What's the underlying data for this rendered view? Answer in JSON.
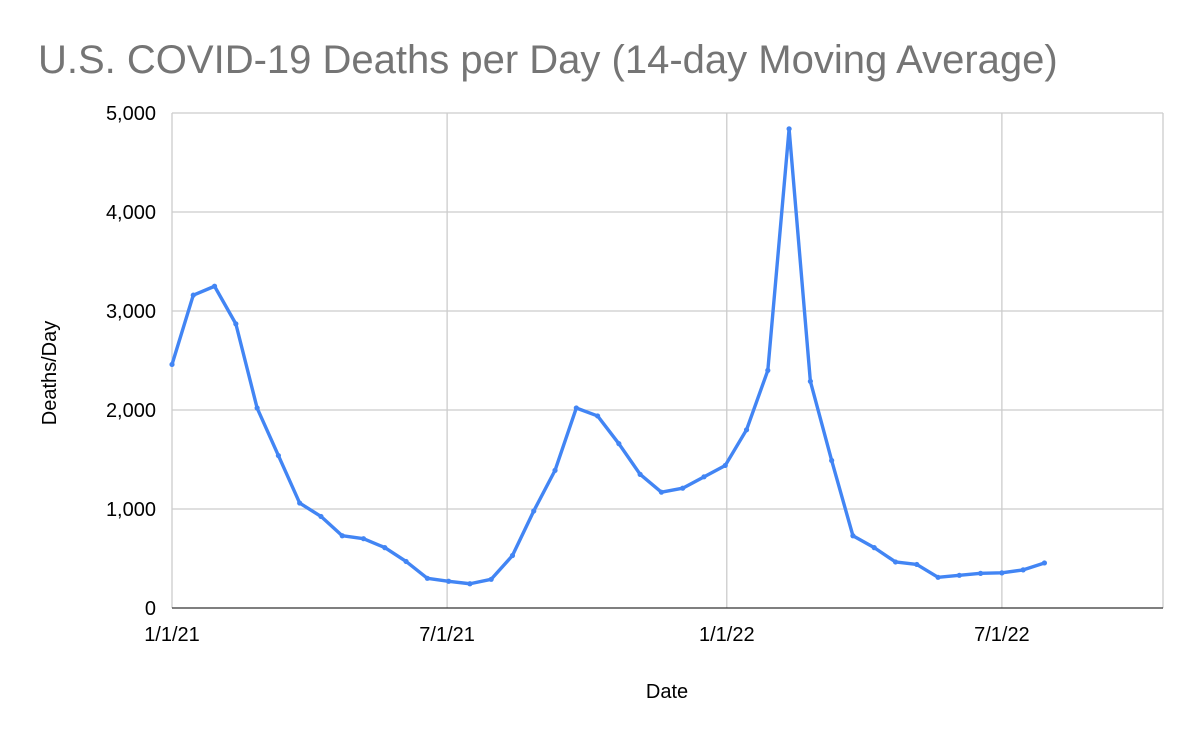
{
  "chart_data": {
    "type": "line",
    "title": "U.S. COVID-19 Deaths per Day (14-day Moving Average)",
    "xlabel": "Date",
    "ylabel": "Deaths/Day",
    "ylim": [
      0,
      5000
    ],
    "yticks": [
      0,
      1000,
      2000,
      3000,
      4000,
      5000
    ],
    "ytick_labels": [
      "0",
      "1,000",
      "2,000",
      "3,000",
      "4,000",
      "5,000"
    ],
    "x_start_date": "2021-01-01",
    "x_end_date": "2022-10-15",
    "xticks": [
      "2021-01-01",
      "2021-07-01",
      "2022-01-01",
      "2022-07-01"
    ],
    "xtick_labels": [
      "1/1/21",
      "7/1/21",
      "1/1/22",
      "7/1/22"
    ],
    "grid": true,
    "legend": "none",
    "color": "#4285f4",
    "series": [
      {
        "name": "Deaths/Day",
        "dates": [
          "2021-01-01",
          "2021-01-15",
          "2021-01-29",
          "2021-02-12",
          "2021-02-26",
          "2021-03-12",
          "2021-03-26",
          "2021-04-09",
          "2021-04-23",
          "2021-05-07",
          "2021-05-21",
          "2021-06-04",
          "2021-06-18",
          "2021-07-02",
          "2021-07-16",
          "2021-07-30",
          "2021-08-13",
          "2021-08-27",
          "2021-09-10",
          "2021-09-24",
          "2021-10-08",
          "2021-10-22",
          "2021-11-05",
          "2021-11-19",
          "2021-12-03",
          "2021-12-17",
          "2021-12-31",
          "2022-01-14",
          "2022-01-28",
          "2022-02-11",
          "2022-02-25",
          "2022-03-11",
          "2022-03-25",
          "2022-04-08",
          "2022-04-22",
          "2022-05-06",
          "2022-05-20",
          "2022-06-03",
          "2022-06-17",
          "2022-07-01",
          "2022-07-15",
          "2022-07-29"
        ],
        "values": [
          2460,
          3160,
          3250,
          2870,
          2020,
          1540,
          1060,
          925,
          730,
          700,
          610,
          470,
          300,
          270,
          245,
          290,
          530,
          980,
          1390,
          2020,
          1940,
          1660,
          1350,
          1170,
          1210,
          1325,
          1440,
          1800,
          2400,
          4840,
          2290,
          1490,
          730,
          610,
          465,
          440,
          310,
          330,
          350,
          355,
          385,
          455
        ]
      }
    ]
  }
}
